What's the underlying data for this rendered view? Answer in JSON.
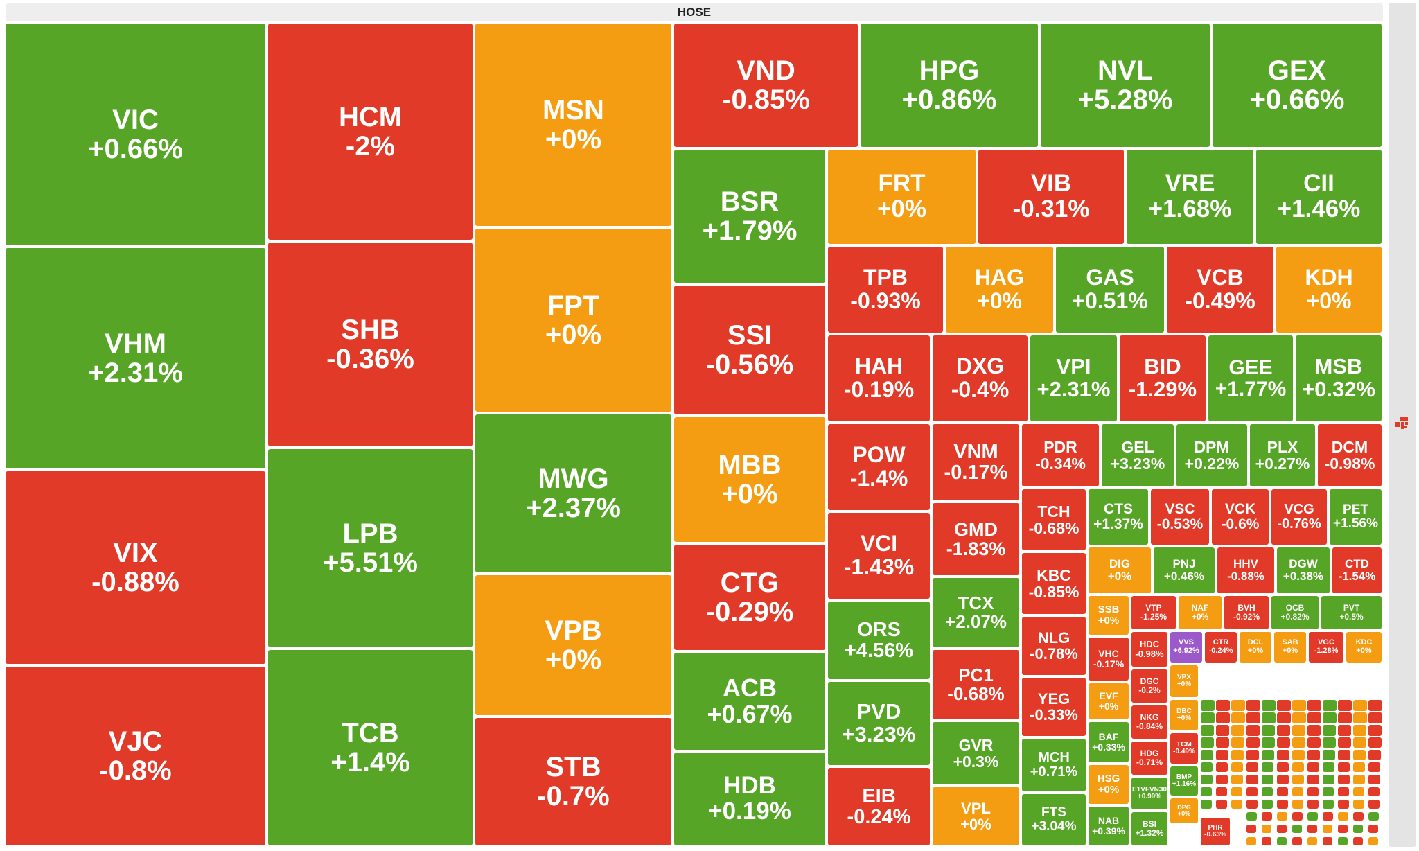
{
  "chart_data": {
    "type": "treemap",
    "title": "HOSE",
    "colors": {
      "up": "#56a527",
      "down": "#e13a28",
      "flat": "#f59d12",
      "ceiling": "#9b59c9"
    },
    "tiles": [
      {
        "ticker": "VIC",
        "change": "+0.66%",
        "status": "up"
      },
      {
        "ticker": "VHM",
        "change": "+2.31%",
        "status": "up"
      },
      {
        "ticker": "VIX",
        "change": "-0.88%",
        "status": "down"
      },
      {
        "ticker": "VJC",
        "change": "-0.8%",
        "status": "down"
      },
      {
        "ticker": "HCM",
        "change": "-2%",
        "status": "down"
      },
      {
        "ticker": "SHB",
        "change": "-0.36%",
        "status": "down"
      },
      {
        "ticker": "LPB",
        "change": "+5.51%",
        "status": "up"
      },
      {
        "ticker": "TCB",
        "change": "+1.4%",
        "status": "up"
      },
      {
        "ticker": "MSN",
        "change": "+0%",
        "status": "flat"
      },
      {
        "ticker": "FPT",
        "change": "+0%",
        "status": "flat"
      },
      {
        "ticker": "MWG",
        "change": "+2.37%",
        "status": "up"
      },
      {
        "ticker": "VPB",
        "change": "+0%",
        "status": "flat"
      },
      {
        "ticker": "STB",
        "change": "-0.7%",
        "status": "down"
      },
      {
        "ticker": "VND",
        "change": "-0.85%",
        "status": "down"
      },
      {
        "ticker": "HPG",
        "change": "+0.86%",
        "status": "up"
      },
      {
        "ticker": "NVL",
        "change": "+5.28%",
        "status": "up"
      },
      {
        "ticker": "GEX",
        "change": "+0.66%",
        "status": "up"
      },
      {
        "ticker": "BSR",
        "change": "+1.79%",
        "status": "up"
      },
      {
        "ticker": "SSI",
        "change": "-0.56%",
        "status": "down"
      },
      {
        "ticker": "MBB",
        "change": "+0%",
        "status": "flat"
      },
      {
        "ticker": "CTG",
        "change": "-0.29%",
        "status": "down"
      },
      {
        "ticker": "ACB",
        "change": "+0.67%",
        "status": "up"
      },
      {
        "ticker": "HDB",
        "change": "+0.19%",
        "status": "up"
      },
      {
        "ticker": "FRT",
        "change": "+0%",
        "status": "flat"
      },
      {
        "ticker": "VIB",
        "change": "-0.31%",
        "status": "down"
      },
      {
        "ticker": "VRE",
        "change": "+1.68%",
        "status": "up"
      },
      {
        "ticker": "CII",
        "change": "+1.46%",
        "status": "up"
      },
      {
        "ticker": "TPB",
        "change": "-0.93%",
        "status": "down"
      },
      {
        "ticker": "HAG",
        "change": "+0%",
        "status": "flat"
      },
      {
        "ticker": "GAS",
        "change": "+0.51%",
        "status": "up"
      },
      {
        "ticker": "VCB",
        "change": "-0.49%",
        "status": "down"
      },
      {
        "ticker": "KDH",
        "change": "+0%",
        "status": "flat"
      },
      {
        "ticker": "HAH",
        "change": "-0.19%",
        "status": "down"
      },
      {
        "ticker": "DXG",
        "change": "-0.4%",
        "status": "down"
      },
      {
        "ticker": "VPI",
        "change": "+2.31%",
        "status": "up"
      },
      {
        "ticker": "BID",
        "change": "-1.29%",
        "status": "down"
      },
      {
        "ticker": "GEE",
        "change": "+1.77%",
        "status": "up"
      },
      {
        "ticker": "MSB",
        "change": "+0.32%",
        "status": "up"
      },
      {
        "ticker": "POW",
        "change": "-1.4%",
        "status": "down"
      },
      {
        "ticker": "VCI",
        "change": "-1.43%",
        "status": "down"
      },
      {
        "ticker": "ORS",
        "change": "+4.56%",
        "status": "up"
      },
      {
        "ticker": "PVD",
        "change": "+3.23%",
        "status": "up"
      },
      {
        "ticker": "EIB",
        "change": "-0.24%",
        "status": "down"
      },
      {
        "ticker": "VNM",
        "change": "-0.17%",
        "status": "down"
      },
      {
        "ticker": "GMD",
        "change": "-1.83%",
        "status": "down"
      },
      {
        "ticker": "TCX",
        "change": "+2.07%",
        "status": "up"
      },
      {
        "ticker": "PC1",
        "change": "-0.68%",
        "status": "down"
      },
      {
        "ticker": "GVR",
        "change": "+0.3%",
        "status": "up"
      },
      {
        "ticker": "VPL",
        "change": "+0%",
        "status": "flat"
      },
      {
        "ticker": "PDR",
        "change": "-0.34%",
        "status": "down"
      },
      {
        "ticker": "GEL",
        "change": "+3.23%",
        "status": "up"
      },
      {
        "ticker": "DPM",
        "change": "+0.22%",
        "status": "up"
      },
      {
        "ticker": "PLX",
        "change": "+0.27%",
        "status": "up"
      },
      {
        "ticker": "DCM",
        "change": "-0.98%",
        "status": "down"
      },
      {
        "ticker": "TCH",
        "change": "-0.68%",
        "status": "down"
      },
      {
        "ticker": "KBC",
        "change": "-0.85%",
        "status": "down"
      },
      {
        "ticker": "NLG",
        "change": "-0.78%",
        "status": "down"
      },
      {
        "ticker": "YEG",
        "change": "-0.33%",
        "status": "down"
      },
      {
        "ticker": "MCH",
        "change": "+0.71%",
        "status": "up"
      },
      {
        "ticker": "FTS",
        "change": "+3.04%",
        "status": "up"
      },
      {
        "ticker": "CTS",
        "change": "+1.37%",
        "status": "up"
      },
      {
        "ticker": "VSC",
        "change": "-0.53%",
        "status": "down"
      },
      {
        "ticker": "VCK",
        "change": "-0.6%",
        "status": "down"
      },
      {
        "ticker": "VCG",
        "change": "-0.76%",
        "status": "down"
      },
      {
        "ticker": "PET",
        "change": "+1.56%",
        "status": "up"
      },
      {
        "ticker": "DIG",
        "change": "+0%",
        "status": "flat"
      },
      {
        "ticker": "PNJ",
        "change": "+0.46%",
        "status": "up"
      },
      {
        "ticker": "HHV",
        "change": "-0.88%",
        "status": "down"
      },
      {
        "ticker": "DGW",
        "change": "+0.38%",
        "status": "up"
      },
      {
        "ticker": "CTD",
        "change": "-1.54%",
        "status": "down"
      },
      {
        "ticker": "SSB",
        "change": "+0%",
        "status": "flat"
      },
      {
        "ticker": "VTP",
        "change": "-1.25%",
        "status": "down"
      },
      {
        "ticker": "NAF",
        "change": "+0%",
        "status": "flat"
      },
      {
        "ticker": "BVH",
        "change": "-0.92%",
        "status": "down"
      },
      {
        "ticker": "OCB",
        "change": "+0.82%",
        "status": "up"
      },
      {
        "ticker": "PVT",
        "change": "+0.5%",
        "status": "up"
      },
      {
        "ticker": "VHC",
        "change": "-0.17%",
        "status": "down"
      },
      {
        "ticker": "EVF",
        "change": "+0%",
        "status": "flat"
      },
      {
        "ticker": "BAF",
        "change": "+0.33%",
        "status": "up"
      },
      {
        "ticker": "HSG",
        "change": "+0%",
        "status": "flat"
      },
      {
        "ticker": "NAB",
        "change": "+0.39%",
        "status": "up"
      },
      {
        "ticker": "HDC",
        "change": "-0.98%",
        "status": "down"
      },
      {
        "ticker": "DGC",
        "change": "-0.2%",
        "status": "down"
      },
      {
        "ticker": "NKG",
        "change": "-0.84%",
        "status": "down"
      },
      {
        "ticker": "HDG",
        "change": "-0.71%",
        "status": "down"
      },
      {
        "ticker": "E1VFVN30",
        "change": "+0.99%",
        "status": "up"
      },
      {
        "ticker": "BSI",
        "change": "+1.32%",
        "status": "up"
      },
      {
        "ticker": "VVS",
        "change": "+6.92%",
        "status": "ceiling"
      },
      {
        "ticker": "CTR",
        "change": "-0.24%",
        "status": "down"
      },
      {
        "ticker": "DCL",
        "change": "+0%",
        "status": "flat"
      },
      {
        "ticker": "SAB",
        "change": "+0%",
        "status": "flat"
      },
      {
        "ticker": "VGC",
        "change": "-1.28%",
        "status": "down"
      },
      {
        "ticker": "KDC",
        "change": "+0%",
        "status": "flat"
      },
      {
        "ticker": "VPX",
        "change": "+0%",
        "status": "flat"
      },
      {
        "ticker": "DBC",
        "change": "+0%",
        "status": "flat"
      },
      {
        "ticker": "TCM",
        "change": "-0.49%",
        "status": "down"
      },
      {
        "ticker": "BMP",
        "change": "+1.16%",
        "status": "up"
      },
      {
        "ticker": "DPG",
        "change": "+0%",
        "status": "flat"
      },
      {
        "ticker": "PHR",
        "change": "-0.63%",
        "status": "down"
      }
    ]
  }
}
